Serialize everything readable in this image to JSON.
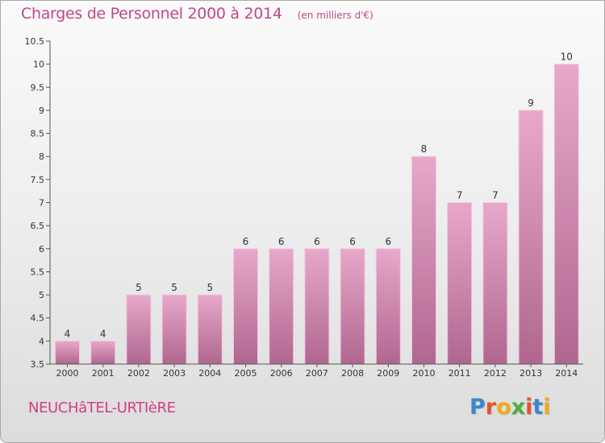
{
  "title": "Charges de Personnel 2000 à 2014",
  "subtitle": "(en milliers d'€)",
  "commune": "NEUCHâTEL-URTIèRE",
  "logo": {
    "text": "Proxiti",
    "letters": [
      "P",
      "r",
      "o",
      "x",
      "i",
      "t",
      "i"
    ],
    "colors": [
      "#3a88c9",
      "#e8542c",
      "#f3a81d",
      "#4caf3d",
      "#e8542c",
      "#3a88c9",
      "#f3a81d"
    ]
  },
  "colors": {
    "title": "#c0478a",
    "bar_top": "#e7a8cb",
    "bar_bottom": "#b0678f",
    "bar_stroke": "#f4c6de"
  },
  "chart_data": {
    "type": "bar",
    "categories": [
      "2000",
      "2001",
      "2002",
      "2003",
      "2004",
      "2005",
      "2006",
      "2007",
      "2008",
      "2009",
      "2010",
      "2011",
      "2012",
      "2013",
      "2014"
    ],
    "values": [
      4,
      4,
      5,
      5,
      5,
      6,
      6,
      6,
      6,
      6,
      8,
      7,
      7,
      9,
      10
    ],
    "data_labels": [
      "4",
      "4",
      "5",
      "5",
      "5",
      "6",
      "6",
      "6",
      "6",
      "6",
      "8",
      "7",
      "7",
      "9",
      "10"
    ],
    "ylim": [
      3.5,
      10.5
    ],
    "yticks": [
      3.5,
      4,
      4.5,
      5,
      5.5,
      6,
      6.5,
      7,
      7.5,
      8,
      8.5,
      9,
      9.5,
      10,
      10.5
    ],
    "ytick_labels": [
      "3.5",
      "4",
      "4.5",
      "5",
      "5.5",
      "6",
      "6.5",
      "7",
      "7.5",
      "8",
      "8.5",
      "9",
      "9.5",
      "10",
      "10.5"
    ],
    "grid": false,
    "legend": "none"
  }
}
